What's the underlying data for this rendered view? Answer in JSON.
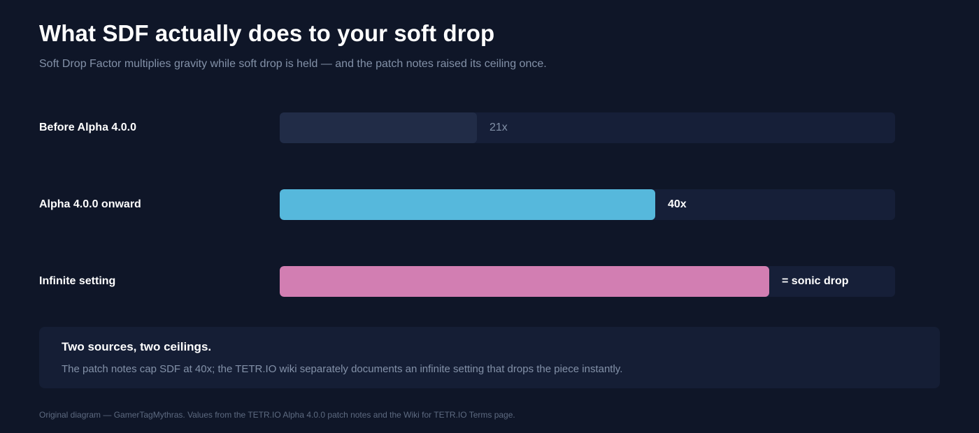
{
  "title": "What SDF actually does to your soft drop",
  "subtitle": "Soft Drop Factor multiplies gravity while soft drop is held — and the patch notes raised its ceiling once.",
  "chart_data": {
    "type": "bar",
    "orientation": "horizontal",
    "categories": [
      "Before Alpha 4.0.0",
      "Alpha 4.0.0 onward",
      "Infinite setting"
    ],
    "values": [
      21,
      40,
      null
    ],
    "value_labels": [
      "21x",
      "40x",
      "= sonic drop"
    ],
    "bar_colors": [
      "#212c47",
      "#56b8dc",
      "#d27eb2"
    ],
    "value_label_colors": [
      "#8391a8",
      "#ffffff",
      "#ffffff"
    ],
    "track_color": "#161f38",
    "unlimited_fill_fraction": 0.795,
    "xlim": [
      0,
      65.5
    ],
    "grid": false
  },
  "note": {
    "title": "Two sources, two ceilings.",
    "text": "The patch notes cap SDF at 40x; the TETR.IO wiki separately documents an infinite setting that drops the piece instantly."
  },
  "footer": "Original diagram — GamerTagMythras. Values from the TETR.IO Alpha 4.0.0 patch notes and the Wiki for TETR.IO Terms page."
}
